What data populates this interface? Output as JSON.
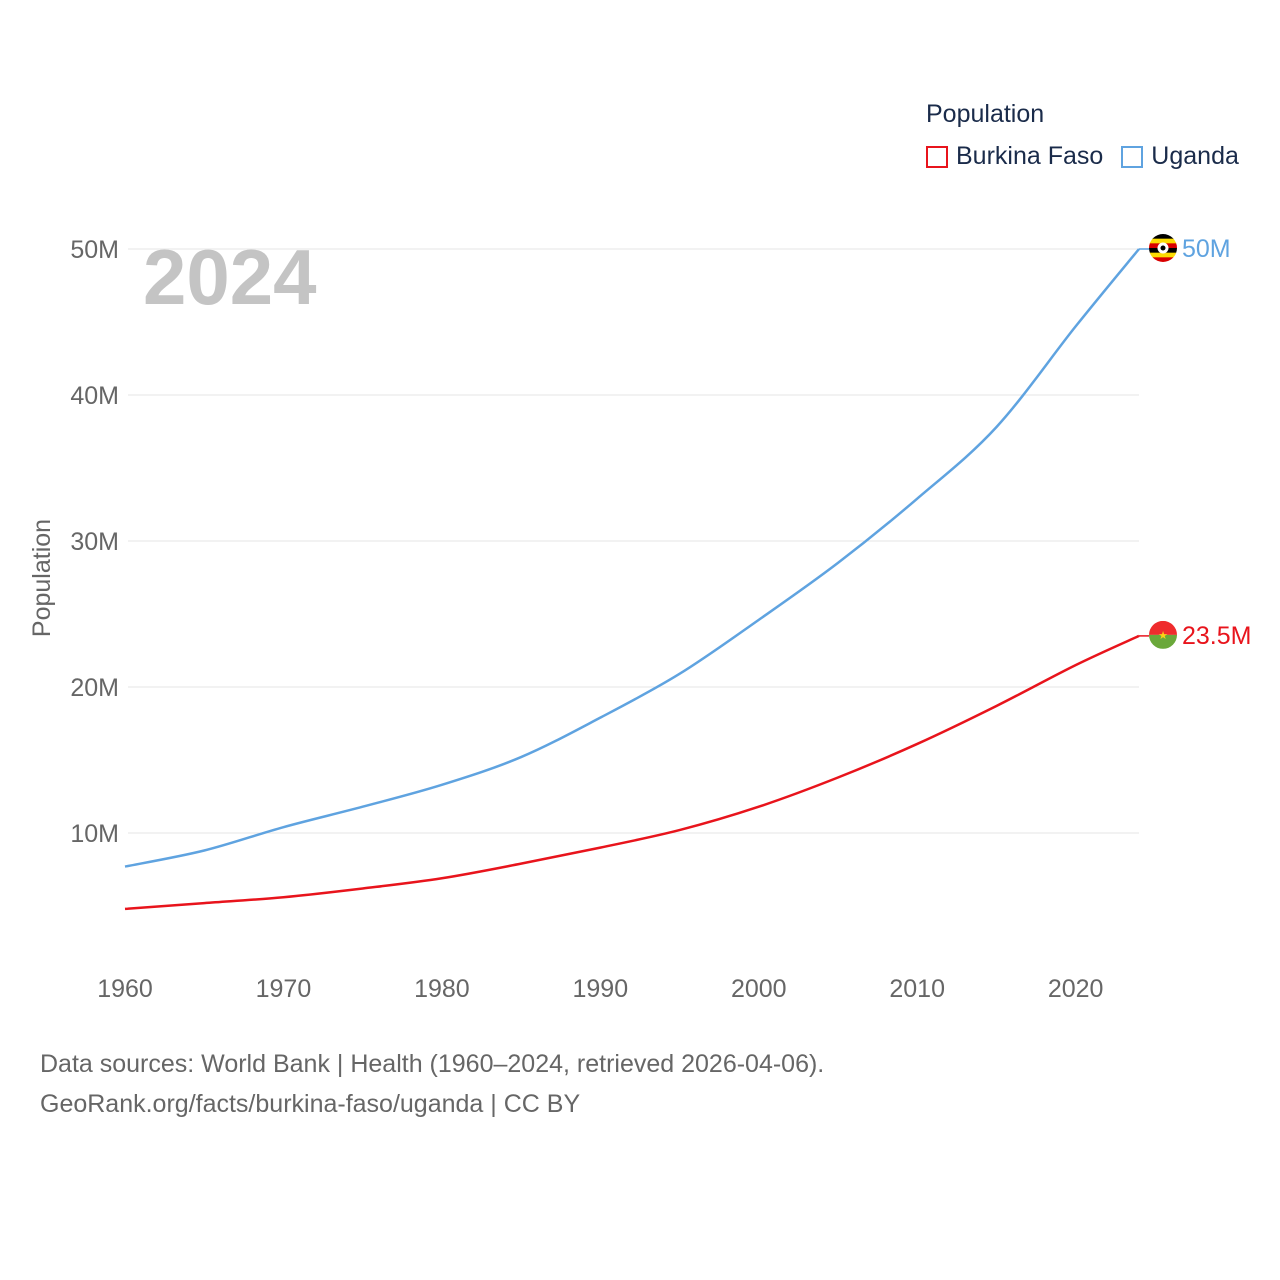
{
  "legend": {
    "title": "Population",
    "items": [
      {
        "name": "Burkina Faso",
        "color": "#e8141c"
      },
      {
        "name": "Uganda",
        "color": "#5fa3e0"
      }
    ]
  },
  "year_label": "2024",
  "footer": {
    "line1": "Data sources: World Bank | Health (1960–2024, retrieved 2026-04-06).",
    "line2": "GeoRank.org/facts/burkina-faso/uganda | CC BY"
  },
  "chart_data": {
    "type": "line",
    "title": "Population",
    "xlabel": "",
    "ylabel": "Population",
    "xlim": [
      1960,
      2024
    ],
    "ylim": [
      0,
      50000000
    ],
    "x_ticks": [
      1960,
      1970,
      1980,
      1990,
      2000,
      2010,
      2020
    ],
    "y_ticks": [
      {
        "value": 10000000,
        "label": "10M"
      },
      {
        "value": 20000000,
        "label": "20M"
      },
      {
        "value": 30000000,
        "label": "30M"
      },
      {
        "value": 40000000,
        "label": "40M"
      },
      {
        "value": 50000000,
        "label": "50M"
      }
    ],
    "grid": true,
    "series": [
      {
        "name": "Burkina Faso",
        "color": "#e8141c",
        "end_label": "23.5M",
        "flag": "burkina-faso-flag-icon",
        "x": [
          1960,
          1965,
          1970,
          1975,
          1980,
          1985,
          1990,
          1995,
          2000,
          2005,
          2010,
          2015,
          2020,
          2024
        ],
        "values": [
          4800000,
          5200000,
          5600000,
          6200000,
          6900000,
          7900000,
          9000000,
          10200000,
          11800000,
          13800000,
          16100000,
          18700000,
          21500000,
          23500000
        ]
      },
      {
        "name": "Uganda",
        "color": "#5fa3e0",
        "end_label": "50M",
        "flag": "uganda-flag-icon",
        "x": [
          1960,
          1965,
          1970,
          1975,
          1980,
          1985,
          1990,
          1995,
          2000,
          2005,
          2010,
          2015,
          2020,
          2024
        ],
        "values": [
          7700000,
          8800000,
          10400000,
          11800000,
          13300000,
          15200000,
          17900000,
          20900000,
          24600000,
          28500000,
          32900000,
          37800000,
          44700000,
          50000000
        ]
      }
    ]
  }
}
